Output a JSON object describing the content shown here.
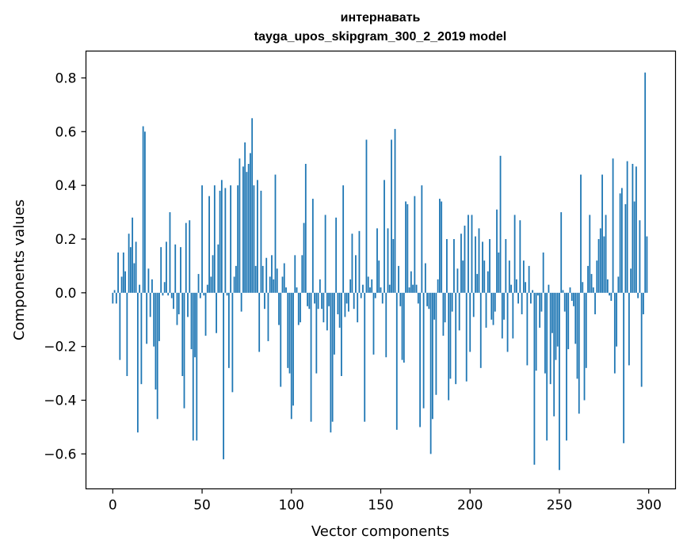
{
  "chart_data": {
    "type": "bar",
    "title": "интернавать",
    "subtitle": "tayga_upos_skipgram_300_2_2019 model",
    "xlabel": "Vector components",
    "ylabel": "Components values",
    "xlim": [
      -15,
      315
    ],
    "ylim": [
      -0.73,
      0.9
    ],
    "x_ticks": [
      0,
      50,
      100,
      150,
      200,
      250,
      300
    ],
    "x_tick_labels": [
      "0",
      "50",
      "100",
      "150",
      "200",
      "250",
      "300"
    ],
    "y_ticks": [
      -0.6,
      -0.4,
      -0.2,
      0.0,
      0.2,
      0.4,
      0.6,
      0.8
    ],
    "y_tick_labels": [
      "−0.6",
      "−0.4",
      "−0.2",
      "0.0",
      "0.2",
      "0.4",
      "0.6",
      "0.8"
    ],
    "bar_color": "#1f77b4",
    "grid": false,
    "legend": "none",
    "x": [
      0,
      1,
      2,
      3,
      4,
      5,
      6,
      7,
      8,
      9,
      10,
      11,
      12,
      13,
      14,
      15,
      16,
      17,
      18,
      19,
      20,
      21,
      22,
      23,
      24,
      25,
      26,
      27,
      28,
      29,
      30,
      31,
      32,
      33,
      34,
      35,
      36,
      37,
      38,
      39,
      40,
      41,
      42,
      43,
      44,
      45,
      46,
      47,
      48,
      49,
      50,
      51,
      52,
      53,
      54,
      55,
      56,
      57,
      58,
      59,
      60,
      61,
      62,
      63,
      64,
      65,
      66,
      67,
      68,
      69,
      70,
      71,
      72,
      73,
      74,
      75,
      76,
      77,
      78,
      79,
      80,
      81,
      82,
      83,
      84,
      85,
      86,
      87,
      88,
      89,
      90,
      91,
      92,
      93,
      94,
      95,
      96,
      97,
      98,
      99,
      100,
      101,
      102,
      103,
      104,
      105,
      106,
      107,
      108,
      109,
      110,
      111,
      112,
      113,
      114,
      115,
      116,
      117,
      118,
      119,
      120,
      121,
      122,
      123,
      124,
      125,
      126,
      127,
      128,
      129,
      130,
      131,
      132,
      133,
      134,
      135,
      136,
      137,
      138,
      139,
      140,
      141,
      142,
      143,
      144,
      145,
      146,
      147,
      148,
      149,
      150,
      151,
      152,
      153,
      154,
      155,
      156,
      157,
      158,
      159,
      160,
      161,
      162,
      163,
      164,
      165,
      166,
      167,
      168,
      169,
      170,
      171,
      172,
      173,
      174,
      175,
      176,
      177,
      178,
      179,
      180,
      181,
      182,
      183,
      184,
      185,
      186,
      187,
      188,
      189,
      190,
      191,
      192,
      193,
      194,
      195,
      196,
      197,
      198,
      199,
      200,
      201,
      202,
      203,
      204,
      205,
      206,
      207,
      208,
      209,
      210,
      211,
      212,
      213,
      214,
      215,
      216,
      217,
      218,
      219,
      220,
      221,
      222,
      223,
      224,
      225,
      226,
      227,
      228,
      229,
      230,
      231,
      232,
      233,
      234,
      235,
      236,
      237,
      238,
      239,
      240,
      241,
      242,
      243,
      244,
      245,
      246,
      247,
      248,
      249,
      250,
      251,
      252,
      253,
      254,
      255,
      256,
      257,
      258,
      259,
      260,
      261,
      262,
      263,
      264,
      265,
      266,
      267,
      268,
      269,
      270,
      271,
      272,
      273,
      274,
      275,
      276,
      277,
      278,
      279,
      280,
      281,
      282,
      283,
      284,
      285,
      286,
      287,
      288,
      289,
      290,
      291,
      292,
      293,
      294,
      295,
      296,
      297,
      298,
      299
    ],
    "values": [
      -0.04,
      0.01,
      -0.04,
      0.15,
      -0.25,
      0.06,
      0.15,
      0.08,
      -0.31,
      0.22,
      0.17,
      0.28,
      0.11,
      0.19,
      -0.52,
      0.03,
      -0.34,
      0.62,
      0.6,
      -0.19,
      0.09,
      -0.09,
      0.05,
      -0.2,
      -0.36,
      -0.47,
      -0.18,
      0.17,
      -0.01,
      0.04,
      0.19,
      -0.01,
      0.3,
      -0.02,
      -0.06,
      0.18,
      -0.12,
      -0.08,
      0.17,
      -0.31,
      -0.43,
      0.26,
      -0.09,
      0.27,
      -0.21,
      -0.55,
      -0.24,
      -0.55,
      0.07,
      -0.02,
      0.4,
      -0.01,
      -0.16,
      0.03,
      0.36,
      0.06,
      0.14,
      0.4,
      -0.15,
      0.18,
      0.38,
      0.42,
      -0.62,
      0.39,
      -0.01,
      -0.28,
      0.4,
      -0.37,
      0.06,
      0.1,
      0.4,
      0.5,
      -0.07,
      0.47,
      0.56,
      0.45,
      0.48,
      0.52,
      0.65,
      0.4,
      0.1,
      0.42,
      -0.22,
      0.38,
      0.1,
      -0.06,
      0.13,
      -0.18,
      0.06,
      0.14,
      0.05,
      0.44,
      0.09,
      -0.12,
      -0.35,
      0.06,
      0.11,
      0.02,
      -0.28,
      -0.3,
      -0.47,
      -0.42,
      0.14,
      0.02,
      -0.12,
      -0.11,
      0.14,
      0.26,
      0.48,
      -0.05,
      -0.06,
      -0.48,
      0.35,
      -0.04,
      -0.3,
      -0.06,
      0.05,
      -0.06,
      -0.11,
      0.29,
      -0.14,
      -0.05,
      -0.52,
      -0.48,
      -0.23,
      0.28,
      -0.08,
      -0.13,
      -0.31,
      0.4,
      -0.09,
      -0.04,
      -0.07,
      0.05,
      0.22,
      -0.06,
      0.14,
      -0.11,
      0.23,
      -0.02,
      0.03,
      -0.48,
      0.57,
      0.06,
      0.02,
      0.05,
      -0.23,
      -0.02,
      0.24,
      0.12,
      0.02,
      -0.04,
      0.42,
      -0.24,
      0.24,
      0.03,
      0.57,
      0.2,
      0.61,
      -0.51,
      0.1,
      -0.05,
      -0.25,
      -0.26,
      0.34,
      0.33,
      0.02,
      0.08,
      0.03,
      0.36,
      0.03,
      -0.04,
      -0.5,
      0.4,
      -0.43,
      0.11,
      -0.05,
      -0.06,
      -0.6,
      -0.47,
      -0.1,
      -0.38,
      0.05,
      0.35,
      0.34,
      -0.16,
      -0.11,
      0.2,
      -0.4,
      -0.32,
      -0.07,
      0.2,
      -0.34,
      0.09,
      -0.14,
      0.22,
      0.12,
      0.25,
      -0.33,
      0.29,
      -0.22,
      0.29,
      -0.09,
      0.21,
      0.07,
      0.24,
      -0.28,
      0.19,
      0.12,
      -0.13,
      0.08,
      0.2,
      -0.1,
      -0.12,
      -0.07,
      0.31,
      0.15,
      0.51,
      -0.17,
      -0.1,
      0.2,
      -0.22,
      0.12,
      0.03,
      -0.17,
      0.29,
      0.05,
      -0.04,
      0.27,
      -0.08,
      0.12,
      0.04,
      -0.27,
      0.1,
      -0.04,
      0.01,
      -0.64,
      -0.29,
      -0.01,
      -0.13,
      -0.07,
      0.15,
      -0.3,
      -0.55,
      0.03,
      -0.34,
      -0.15,
      -0.46,
      -0.25,
      -0.2,
      -0.66,
      0.3,
      0.01,
      -0.07,
      -0.55,
      -0.21,
      0.02,
      -0.03,
      -0.05,
      -0.19,
      -0.32,
      -0.45,
      0.44,
      0.04,
      -0.4,
      -0.28,
      0.1,
      0.29,
      0.07,
      0.02,
      -0.08,
      0.12,
      0.2,
      0.24,
      0.44,
      0.21,
      0.29,
      0.05,
      -0.01,
      -0.03,
      0.5,
      -0.3,
      -0.2,
      0.06,
      0.37,
      0.39,
      -0.56,
      0.33,
      0.49,
      -0.27,
      0.09,
      0.48,
      0.34,
      0.47,
      -0.02,
      0.27,
      -0.35,
      -0.08,
      0.82,
      0.21
    ]
  }
}
